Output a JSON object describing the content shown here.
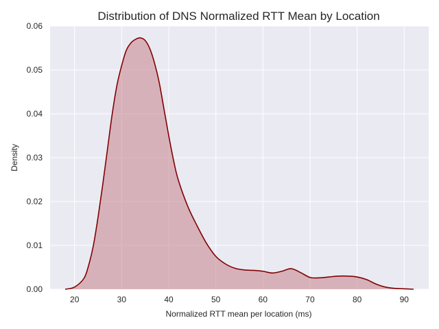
{
  "chart_data": {
    "type": "area",
    "title": "Distribution of DNS Normalized RTT Mean by Location",
    "xlabel": "Normalized RTT mean per location (ms)",
    "ylabel": "Density",
    "xlim": [
      14.8,
      95.2
    ],
    "ylim": [
      0,
      0.06
    ],
    "xticks": [
      20,
      30,
      40,
      50,
      60,
      70,
      80,
      90
    ],
    "yticks": [
      0.0,
      0.01,
      0.02,
      0.03,
      0.04,
      0.05,
      0.06
    ],
    "xtick_labels": [
      "20",
      "30",
      "40",
      "50",
      "60",
      "70",
      "80",
      "90"
    ],
    "ytick_labels": [
      "0.00",
      "0.01",
      "0.02",
      "0.03",
      "0.04",
      "0.05",
      "0.06"
    ],
    "grid": true,
    "series": [
      {
        "x": [
          18,
          20,
          22,
          23,
          24,
          25,
          26,
          27,
          28,
          29,
          30,
          31,
          32,
          33,
          34,
          35,
          36,
          37,
          38,
          39,
          40,
          41,
          42,
          44,
          46,
          48,
          50,
          52,
          54,
          56,
          58,
          60,
          62,
          64,
          66,
          68,
          70,
          72,
          74,
          76,
          78,
          80,
          82,
          84,
          86,
          88,
          90,
          92
        ],
        "y": [
          0.0,
          0.0005,
          0.0025,
          0.0055,
          0.01,
          0.0165,
          0.024,
          0.032,
          0.04,
          0.0465,
          0.051,
          0.0545,
          0.0562,
          0.057,
          0.0573,
          0.0567,
          0.0548,
          0.0515,
          0.047,
          0.041,
          0.035,
          0.0295,
          0.025,
          0.019,
          0.0145,
          0.0105,
          0.0075,
          0.0058,
          0.0048,
          0.0044,
          0.0043,
          0.0041,
          0.0037,
          0.0041,
          0.0047,
          0.0038,
          0.0027,
          0.0026,
          0.0028,
          0.003,
          0.003,
          0.0028,
          0.0022,
          0.0012,
          0.0005,
          0.0002,
          0.0001,
          0.0
        ]
      }
    ],
    "colors": {
      "line": "#800000",
      "fill": "#c98b93",
      "plot_bg": "#eaeaf2",
      "grid": "#ffffff"
    }
  }
}
